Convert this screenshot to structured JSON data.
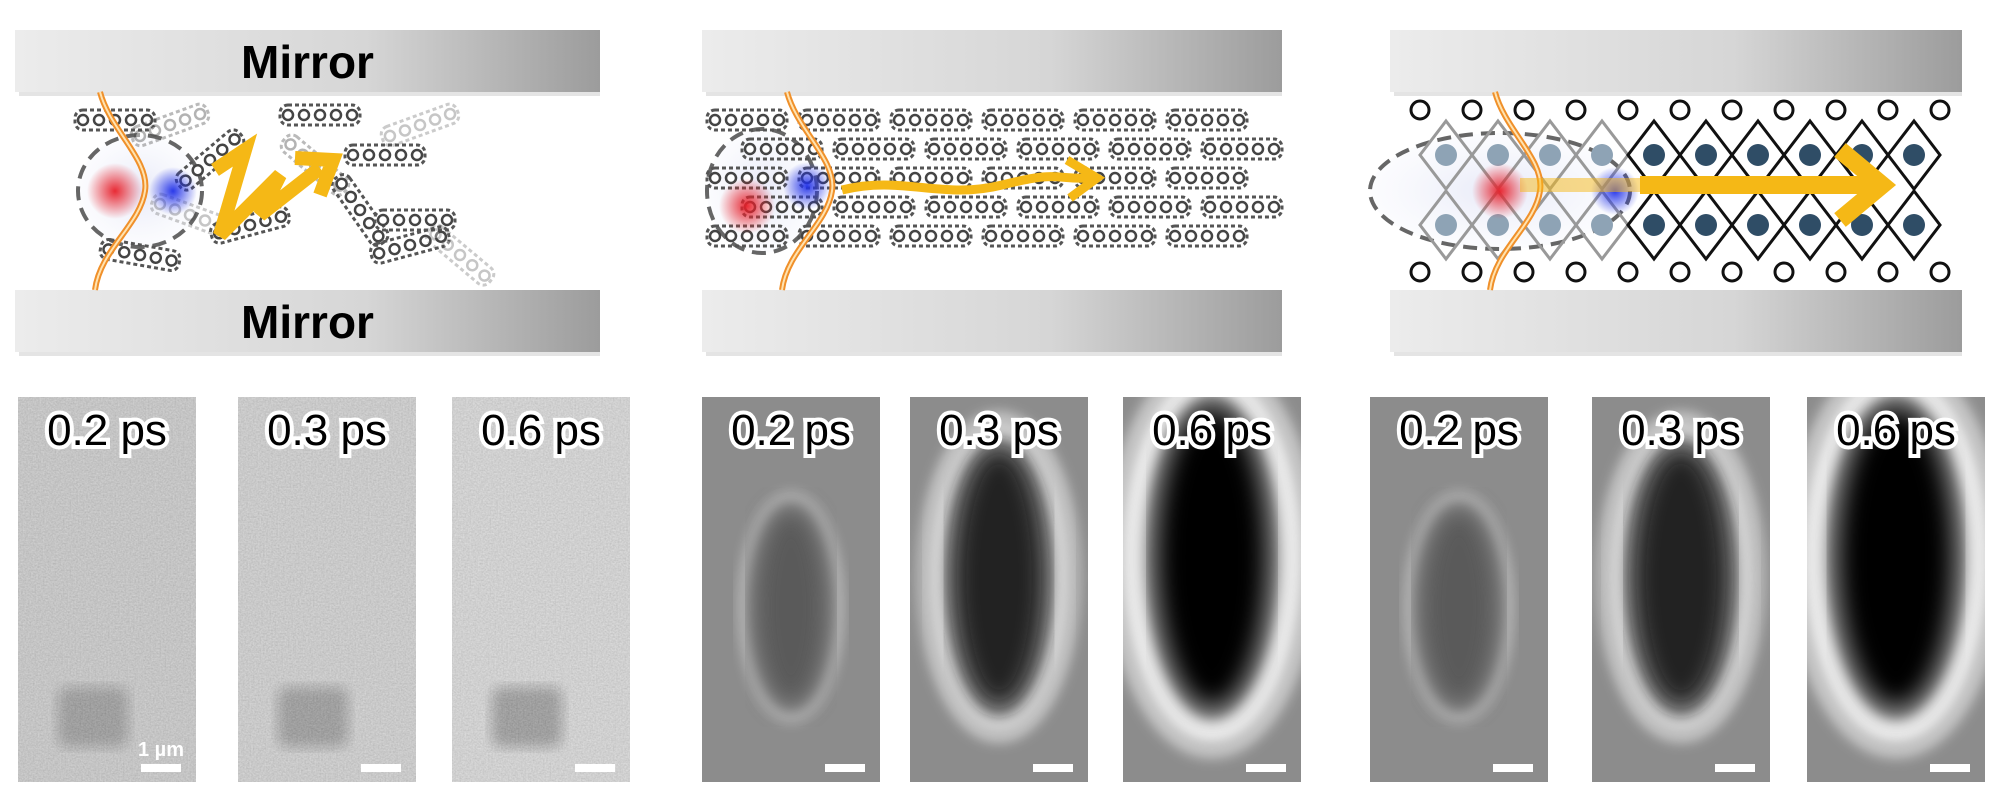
{
  "panels": [
    {
      "mirror_top_label": "Mirror",
      "mirror_bottom_label": "Mirror",
      "transport": "diffusive",
      "images": [
        {
          "time": "0.2 ps"
        },
        {
          "time": "0.3 ps"
        },
        {
          "time": "0.6 ps"
        }
      ],
      "scale_bar_label": "1 µm"
    },
    {
      "transport": "ballistic-organic",
      "images": [
        {
          "time": "0.2 ps"
        },
        {
          "time": "0.3 ps"
        },
        {
          "time": "0.6 ps"
        }
      ]
    },
    {
      "transport": "ballistic-perovskite",
      "images": [
        {
          "time": "0.2 ps"
        },
        {
          "time": "0.3 ps"
        },
        {
          "time": "0.6 ps"
        }
      ]
    }
  ],
  "colors": {
    "arrow": "#f5b816",
    "photon_wave": "#f0902a",
    "hole": "#e8202a",
    "electron": "#2030e8",
    "mirror_light": "#e8e8e8",
    "mirror_dark": "#9a9a9a"
  }
}
